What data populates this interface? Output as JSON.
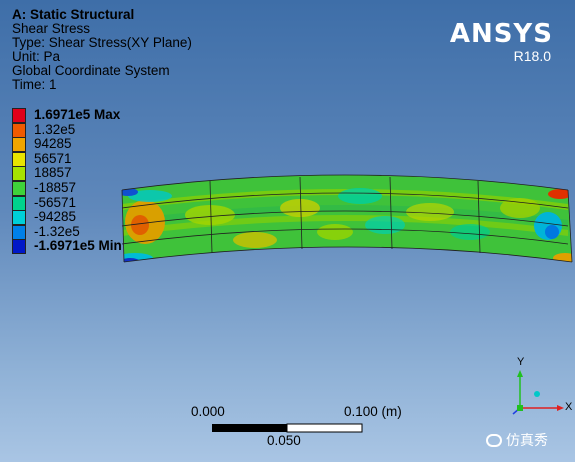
{
  "info": {
    "title": "A: Static Structural",
    "result": "Shear Stress",
    "type": "Type: Shear Stress(XY Plane)",
    "unit": "Unit: Pa",
    "coord": "Global Coordinate System",
    "time": "Time: 1"
  },
  "brand": {
    "name": "ANSYS",
    "version": "R18.0"
  },
  "legend": {
    "items": [
      {
        "label": "1.6971e5 Max",
        "color": "#e0001a",
        "bold": true
      },
      {
        "label": "1.32e5",
        "color": "#f05a00"
      },
      {
        "label": "94285",
        "color": "#f0a500"
      },
      {
        "label": "56571",
        "color": "#e8e400"
      },
      {
        "label": "18857",
        "color": "#a6e200"
      },
      {
        "label": "-18857",
        "color": "#3fd23a"
      },
      {
        "label": "-56571",
        "color": "#00d28d"
      },
      {
        "label": "-94285",
        "color": "#00cfd8"
      },
      {
        "label": "-1.32e5",
        "color": "#0080e8"
      },
      {
        "label": "-1.6971e5 Min",
        "color": "#0018c8",
        "bold": true
      }
    ]
  },
  "scale": {
    "left_label": "0.000",
    "right_label": "0.100 (m)",
    "mid_label": "0.050"
  },
  "triad": {
    "y": "Y",
    "x": "X"
  },
  "watermark": {
    "text": "仿真秀"
  }
}
